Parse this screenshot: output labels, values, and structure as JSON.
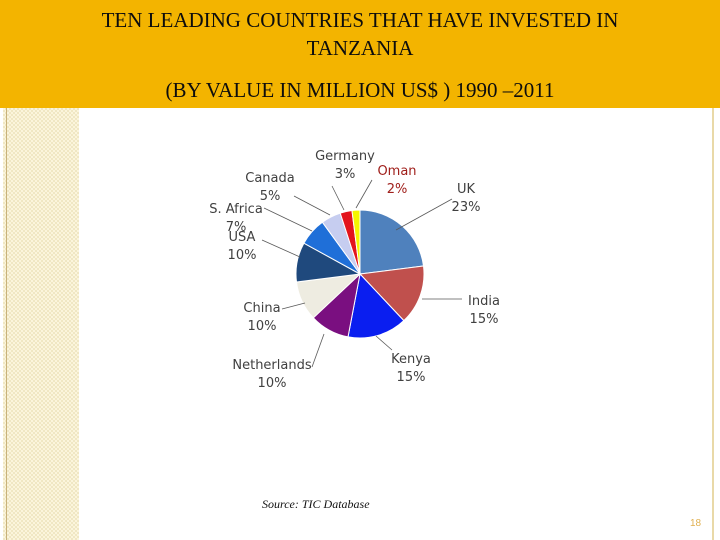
{
  "header": {
    "title_line1": "TEN LEADING COUNTRIES THAT HAVE INVESTED IN",
    "title_line2": "TANZANIA",
    "subtitle": "(BY VALUE IN MILLION US$ ) 1990 –2011"
  },
  "chart_data": {
    "type": "pie",
    "title": "TEN LEADING COUNTRIES THAT HAVE INVESTED IN TANZANIA (BY VALUE IN MILLION US$ ) 1990 –2011",
    "unit": "%",
    "slices": [
      {
        "label": "UK",
        "value_text": "23%",
        "value": 23,
        "color": "#4f81bd"
      },
      {
        "label": "India",
        "value_text": "15%",
        "value": 15,
        "color": "#c0504d"
      },
      {
        "label": "Kenya",
        "value_text": "15%",
        "value": 15,
        "color": "#0a1ef0"
      },
      {
        "label": "Netherlands",
        "value_text": "10%",
        "value": 10,
        "color": "#7a0f80"
      },
      {
        "label": "China",
        "value_text": "10%",
        "value": 10,
        "color": "#eeece1"
      },
      {
        "label": "USA",
        "value_text": "10%",
        "value": 10,
        "color": "#1f497d"
      },
      {
        "label": "S. Africa",
        "value_text": "7%",
        "value": 7,
        "color": "#1f6fd8"
      },
      {
        "label": "Canada",
        "value_text": "5%",
        "value": 5,
        "color": "#c6cdf0"
      },
      {
        "label": "Germany",
        "value_text": "3%",
        "value": 3,
        "color": "#e3141c"
      },
      {
        "label": "Oman",
        "value_text": "2%",
        "value": 2,
        "color": "#f5f500"
      }
    ]
  },
  "footer": {
    "source": "Source: TIC Database",
    "page_number": "18"
  }
}
